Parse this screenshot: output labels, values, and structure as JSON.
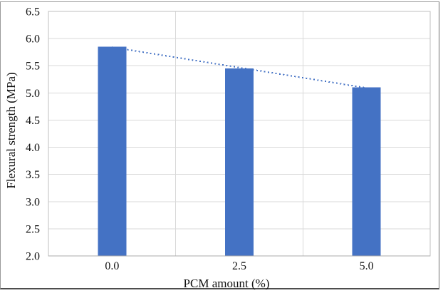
{
  "figure": {
    "background": "#ffffff",
    "border_color": "#9a9a9a",
    "border_bottom_color": "#4d4d4d"
  },
  "chart_data": {
    "type": "bar",
    "title": "",
    "categories": [
      "0.0",
      "2.5",
      "5.0"
    ],
    "values": [
      5.85,
      5.45,
      5.1
    ],
    "xlabel": "PCM amount (%)",
    "ylabel": "Flexural strength (MPa)",
    "ylim": [
      2.0,
      6.5
    ],
    "ytick_step": 0.5,
    "yticks": [
      "2.0",
      "2.5",
      "3.0",
      "3.5",
      "4.0",
      "4.5",
      "5.0",
      "5.5",
      "6.0",
      "6.5"
    ],
    "bar_color": "#4472C4",
    "trendline": {
      "type": "linear",
      "line_style": "dotted",
      "color": "#4472C4"
    },
    "grid": {
      "horizontal": true,
      "vertical_category_separators": true,
      "color": "#D9D9D9"
    },
    "axis_line_color": "#BFBFBF",
    "text_color": "#111111",
    "legend": "none",
    "plot_background": "#ffffff"
  }
}
